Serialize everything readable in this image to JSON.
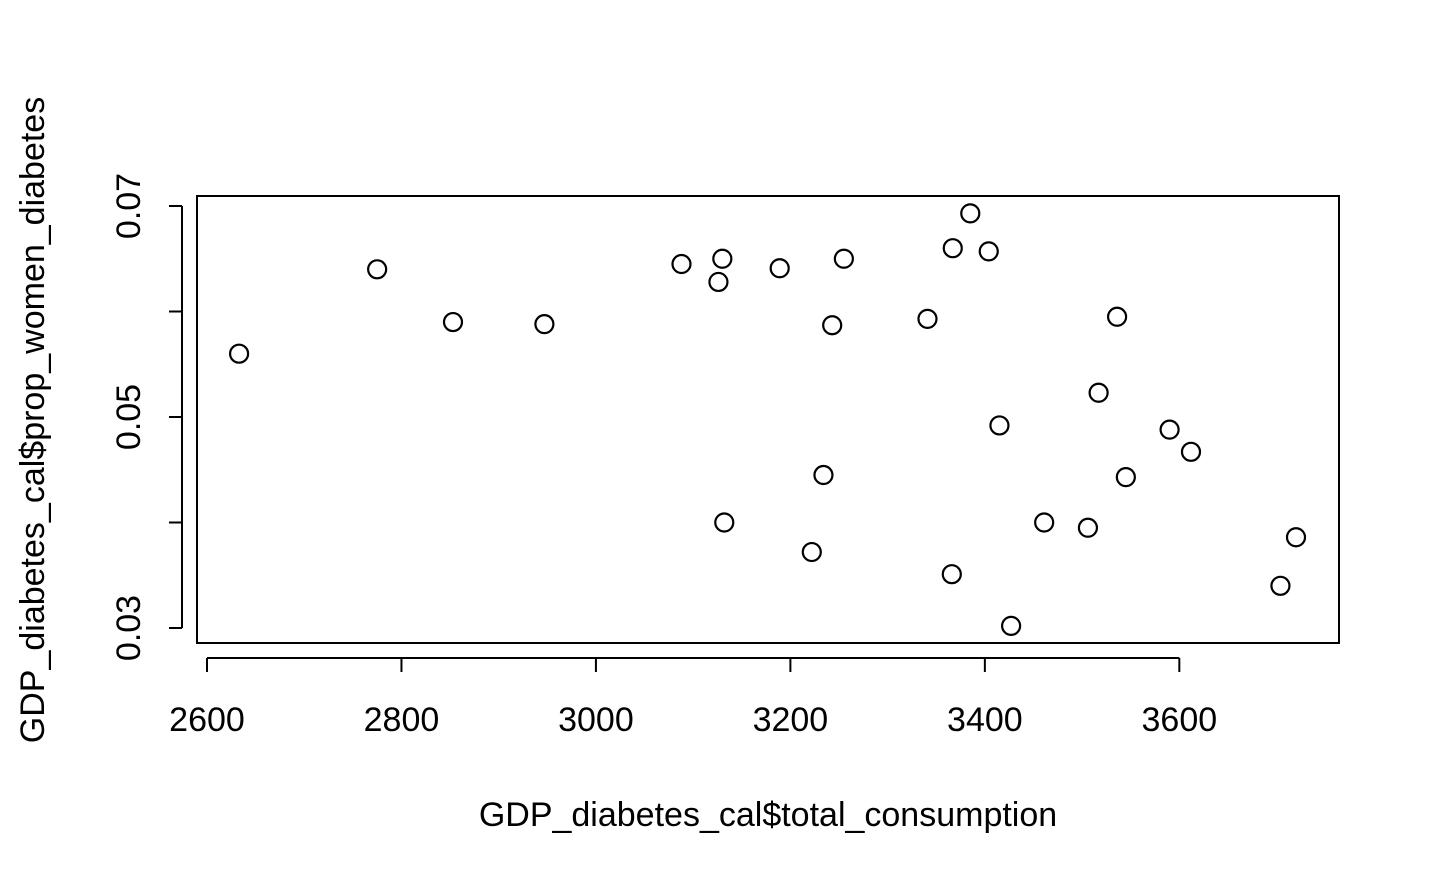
{
  "chart_data": {
    "type": "scatter",
    "title": "",
    "xlabel": "GDP_diabetes_cal$total_consumption",
    "ylabel": "GDP_diabetes_cal$prop_women_diabetes",
    "xlim": [
      2590,
      3760
    ],
    "ylim": [
      0.027,
      0.0715
    ],
    "x_ticks": [
      2600,
      2800,
      3000,
      3200,
      3400,
      3600
    ],
    "x_tick_labels": [
      "2600",
      "2800",
      "3000",
      "3200",
      "3400",
      "3600"
    ],
    "y_ticks": [
      0.03,
      0.04,
      0.05,
      0.06,
      0.07
    ],
    "y_tick_labels": [
      "0.03",
      "",
      "0.05",
      "",
      "0.07"
    ],
    "grid": false,
    "legend": "none",
    "marker": "open-circle",
    "colors": {
      "marker": "#000000",
      "axis": "#000000"
    },
    "points": [
      {
        "x": 2633,
        "y": 0.056
      },
      {
        "x": 2775,
        "y": 0.064
      },
      {
        "x": 2853,
        "y": 0.059
      },
      {
        "x": 2947,
        "y": 0.0588
      },
      {
        "x": 3088,
        "y": 0.0645
      },
      {
        "x": 3126,
        "y": 0.0628
      },
      {
        "x": 3130,
        "y": 0.065
      },
      {
        "x": 3132,
        "y": 0.04
      },
      {
        "x": 3189,
        "y": 0.0641
      },
      {
        "x": 3222,
        "y": 0.0372
      },
      {
        "x": 3234,
        "y": 0.0445
      },
      {
        "x": 3243,
        "y": 0.0587
      },
      {
        "x": 3255,
        "y": 0.065
      },
      {
        "x": 3341,
        "y": 0.0593
      },
      {
        "x": 3366,
        "y": 0.0351
      },
      {
        "x": 3367,
        "y": 0.066
      },
      {
        "x": 3385,
        "y": 0.0693
      },
      {
        "x": 3404,
        "y": 0.0657
      },
      {
        "x": 3415,
        "y": 0.0492
      },
      {
        "x": 3427,
        "y": 0.0302
      },
      {
        "x": 3461,
        "y": 0.04
      },
      {
        "x": 3506,
        "y": 0.0395
      },
      {
        "x": 3517,
        "y": 0.0523
      },
      {
        "x": 3536,
        "y": 0.0595
      },
      {
        "x": 3545,
        "y": 0.0443
      },
      {
        "x": 3590,
        "y": 0.0488
      },
      {
        "x": 3612,
        "y": 0.0467
      },
      {
        "x": 3704,
        "y": 0.034
      },
      {
        "x": 3720,
        "y": 0.0386
      }
    ]
  }
}
